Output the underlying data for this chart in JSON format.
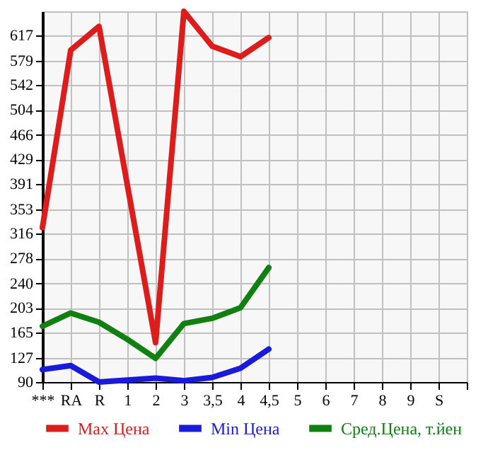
{
  "chart_data": {
    "type": "line",
    "categories": [
      "***",
      "RA",
      "R",
      "1",
      "2",
      "3",
      "3,5",
      "4",
      "4,5",
      "5",
      "6",
      "7",
      "8",
      "9",
      "S",
      null
    ],
    "series": [
      {
        "name": "Max Цена",
        "color": "#dd1c1c",
        "values": [
          325,
          595,
          631,
          390,
          150,
          654,
          601,
          585,
          614,
          null,
          null,
          null,
          null,
          null,
          null,
          null
        ]
      },
      {
        "name": "Min Цена",
        "color": "#1a1adc",
        "values": [
          109,
          115,
          90,
          93,
          96,
          92,
          97,
          111,
          140,
          null,
          null,
          null,
          null,
          null,
          null,
          null
        ]
      },
      {
        "name": "Сред.Цена, т.йен",
        "color": "#118011",
        "values": [
          175,
          195,
          181,
          155,
          126,
          179,
          187,
          203,
          264,
          null,
          null,
          null,
          null,
          null,
          null,
          null
        ]
      }
    ],
    "ylim": [
      90,
      654
    ],
    "yticks": [
      90,
      127,
      165,
      203,
      240,
      278,
      316,
      353,
      391,
      429,
      466,
      504,
      542,
      579,
      617
    ],
    "grid": true,
    "legend": "bottom",
    "marker": "none",
    "line_style": "solid"
  }
}
